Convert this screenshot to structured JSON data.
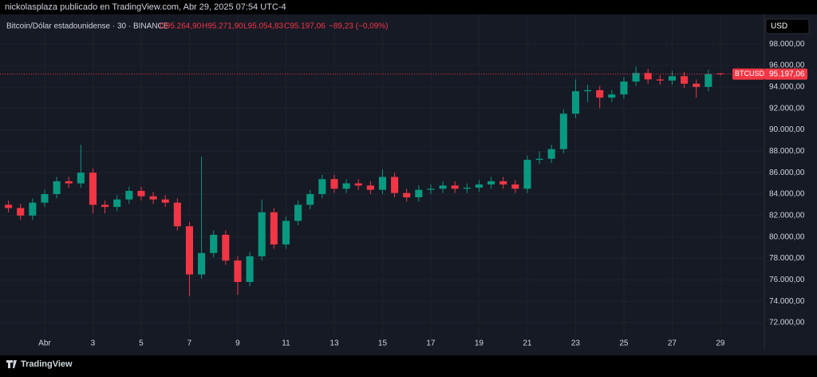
{
  "top_bar": "nickolasplaza publicado en TradingView.com, Abr 29, 2025 07:54 UTC-4",
  "footer": "TradingView",
  "chart_data": {
    "type": "candlestick",
    "title": "Bitcoin/Dólar estadounidense · 30 · BINANCE",
    "ohlc_text": {
      "open": "O95.264,90",
      "high": "H95.271,90",
      "low": "L95.054,83",
      "close": "C95.197,06",
      "change": "−89,23 (−0,09%)"
    },
    "currency": "USD",
    "symbol_tag": "BTCUSD",
    "last_price": {
      "value": 95197.06,
      "label": "95.197,06"
    },
    "up_color": "#089981",
    "down_color": "#f23645",
    "grid": true,
    "xlim": [
      -0.85,
      30.82
    ],
    "ylim": [
      69540,
      100770
    ],
    "xticks": [
      {
        "value": 1,
        "label": "Abr"
      },
      3,
      5,
      7,
      9,
      11,
      13,
      15,
      17,
      19,
      21,
      23,
      25,
      27,
      29
    ],
    "yticks": [
      {
        "value": 72000,
        "label": "72.000,00"
      },
      {
        "value": 74000,
        "label": "74.000,00"
      },
      {
        "value": 76000,
        "label": "76.000,00"
      },
      {
        "value": 78000,
        "label": "78.000,00"
      },
      {
        "value": 80000,
        "label": "80.000,00"
      },
      {
        "value": 82000,
        "label": "82.000,00"
      },
      {
        "value": 84000,
        "label": "84.000,00"
      },
      {
        "value": 86000,
        "label": "86.000,00"
      },
      {
        "value": 88000,
        "label": "88.000,00"
      },
      {
        "value": 90000,
        "label": "90.000,00"
      },
      {
        "value": 92000,
        "label": "92.000,00"
      },
      {
        "value": 94000,
        "label": "94.000,00"
      },
      {
        "value": 96000,
        "label": "96.000,00"
      },
      {
        "value": 98000,
        "label": "98.000,00"
      }
    ],
    "x": [
      -0.5,
      0,
      0.5,
      1,
      1.5,
      2,
      2.5,
      3,
      3.5,
      4,
      4.5,
      5,
      5.5,
      6,
      6.5,
      7,
      7.5,
      8,
      8.5,
      9,
      9.5,
      10,
      10.5,
      11,
      11.5,
      12,
      12.5,
      13,
      13.5,
      14,
      14.5,
      15,
      15.5,
      16,
      16.5,
      17,
      17.5,
      18,
      18.5,
      19,
      19.5,
      20,
      20.5,
      21,
      21.5,
      22,
      22.5,
      23,
      23.5,
      24,
      24.5,
      25,
      25.5,
      26,
      26.5,
      27,
      27.5,
      28,
      28.5,
      29
    ],
    "open": [
      83000,
      82700,
      82000,
      83200,
      84000,
      85200,
      85000,
      86000,
      83000,
      82800,
      83500,
      84300,
      83800,
      83500,
      83200,
      81000,
      76500,
      78500,
      80200,
      77800,
      75800,
      78200,
      82300,
      79300,
      81500,
      83000,
      84000,
      85400,
      84500,
      85000,
      84800,
      84400,
      85600,
      84100,
      83700,
      84400,
      84500,
      84800,
      84500,
      84600,
      84900,
      85200,
      84900,
      84500,
      87200,
      87300,
      88200,
      91500,
      93600,
      93700,
      93000,
      93300,
      94500,
      95300,
      94700,
      94600,
      95000,
      94300,
      94000,
      95264.9
    ],
    "high": [
      83400,
      83100,
      83600,
      84400,
      85600,
      85600,
      88600,
      86400,
      83400,
      83900,
      84700,
      84700,
      84200,
      83900,
      83600,
      81400,
      87500,
      80600,
      80600,
      78200,
      78600,
      83500,
      82700,
      81900,
      83400,
      84400,
      85800,
      85800,
      85400,
      85400,
      85200,
      86300,
      86000,
      84500,
      84800,
      84900,
      85200,
      85200,
      85000,
      85300,
      85600,
      85600,
      85300,
      87600,
      88000,
      88600,
      91900,
      94700,
      94200,
      94100,
      93700,
      94900,
      95900,
      95700,
      95100,
      95500,
      95400,
      94700,
      95600,
      95271.9
    ],
    "low": [
      82300,
      81600,
      81600,
      82800,
      83600,
      84600,
      84600,
      82200,
      82200,
      82400,
      83100,
      83400,
      83100,
      82800,
      80600,
      74500,
      76100,
      78100,
      77400,
      74600,
      75400,
      77800,
      78900,
      78900,
      81100,
      82600,
      83600,
      84100,
      84100,
      84400,
      84000,
      84000,
      83700,
      83300,
      83300,
      84000,
      84100,
      84100,
      84100,
      84200,
      84500,
      84500,
      84100,
      84100,
      86800,
      86900,
      87800,
      91100,
      92600,
      92000,
      92600,
      92900,
      94100,
      94300,
      94200,
      94200,
      93900,
      93000,
      93600,
      95054.83
    ],
    "close": [
      82700,
      82000,
      83200,
      84000,
      85200,
      85000,
      86000,
      83000,
      82800,
      83500,
      84300,
      83800,
      83500,
      83200,
      81000,
      76500,
      78500,
      80200,
      77800,
      75800,
      78200,
      82300,
      79300,
      81500,
      83000,
      84000,
      85400,
      84500,
      85000,
      84800,
      84400,
      85600,
      84100,
      83700,
      84400,
      84500,
      84800,
      84500,
      84600,
      84900,
      85200,
      84900,
      84500,
      87200,
      87300,
      88200,
      91500,
      93600,
      93700,
      93000,
      93300,
      94500,
      95300,
      94700,
      94600,
      95000,
      94300,
      94000,
      95200,
      95197.06
    ]
  }
}
